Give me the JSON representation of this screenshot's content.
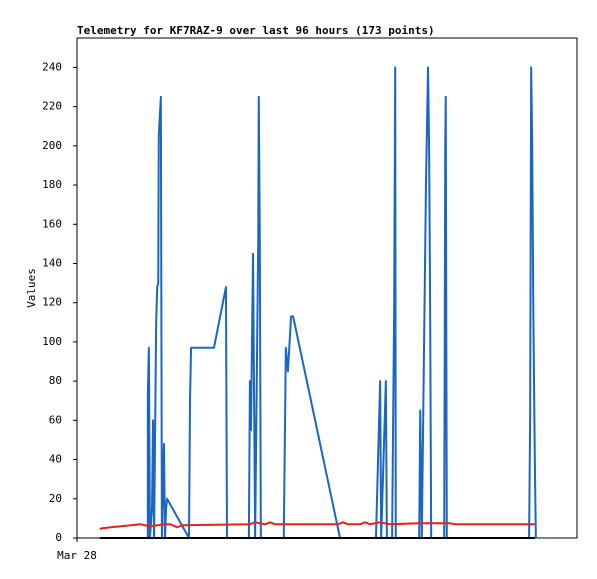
{
  "chart_data": {
    "type": "line",
    "title": "Telemetry for KF7RAZ-9 over last 96 hours (173 points)",
    "y_label": "Values",
    "xlim": [
      0,
      96
    ],
    "xticks": [
      {
        "value": 0,
        "label": "Mar 28"
      }
    ],
    "ylim": [
      0,
      255
    ],
    "yticks": [
      0,
      20,
      40,
      60,
      80,
      100,
      120,
      140,
      160,
      180,
      200,
      220,
      240
    ],
    "grid": false,
    "series": [
      {
        "color": "#1a66c2",
        "x": [
          13.6,
          13.6,
          13.8,
          14.0,
          14.4,
          14.6,
          14.8,
          15.2,
          15.4,
          15.6,
          15.7,
          16.1,
          16.3,
          16.7,
          16.9,
          17.1,
          17.3,
          21.5,
          21.7,
          21.9,
          26.3,
          28.6,
          28.8,
          33.0,
          33.2,
          33.4,
          33.8,
          34.0,
          34.2,
          34.8,
          34.9,
          35.1,
          35.3,
          39.7,
          40.1,
          40.5,
          41.1,
          41.5,
          50.5,
          57.4,
          57.8,
          58.2,
          58.4,
          59.3,
          59.5,
          60.5,
          60.9,
          61.1,
          61.2,
          65.7,
          65.9,
          66.2,
          67.0,
          67.4,
          67.6,
          67.8,
          68.0,
          70.5,
          70.7,
          70.8,
          71.0,
          86.8,
          87.0,
          87.2,
          87.4,
          87.6,
          87.9,
          88.1
        ],
        "values": [
          0,
          72,
          97,
          0,
          15,
          60,
          0,
          110,
          128,
          130,
          205,
          225,
          0,
          48,
          0,
          15,
          20,
          0,
          70,
          97,
          97,
          128,
          0,
          0,
          80,
          55,
          145,
          72,
          0,
          153,
          225,
          152,
          0,
          0,
          97,
          85,
          113,
          113,
          0,
          0,
          40,
          80,
          0,
          80,
          0,
          0,
          120,
          240,
          0,
          0,
          65,
          0,
          180,
          240,
          200,
          120,
          0,
          0,
          200,
          225,
          0,
          0,
          60,
          240,
          200,
          120,
          40,
          0
        ]
      },
      {
        "color": "#e8201c",
        "x": [
          4.4,
          4.8,
          12.1,
          14.0,
          16.9,
          17.9,
          19.2,
          20.2,
          33.2,
          34.2,
          36.1,
          37.1,
          38.0,
          50.1,
          51.1,
          52.0,
          54.3,
          55.3,
          56.3,
          57.2,
          58.2,
          60.1,
          65.9,
          71.6,
          72.6,
          87.9
        ],
        "values": [
          4.5,
          5,
          7,
          6,
          7,
          7,
          5.5,
          6.5,
          7,
          8,
          7,
          8,
          7,
          7,
          8,
          7,
          7,
          8,
          7,
          7.5,
          8,
          7,
          7.5,
          7.5,
          7,
          7
        ]
      },
      {
        "color": "#000000",
        "x": [
          4.4,
          87.9
        ],
        "values": [
          0,
          0
        ]
      }
    ]
  }
}
